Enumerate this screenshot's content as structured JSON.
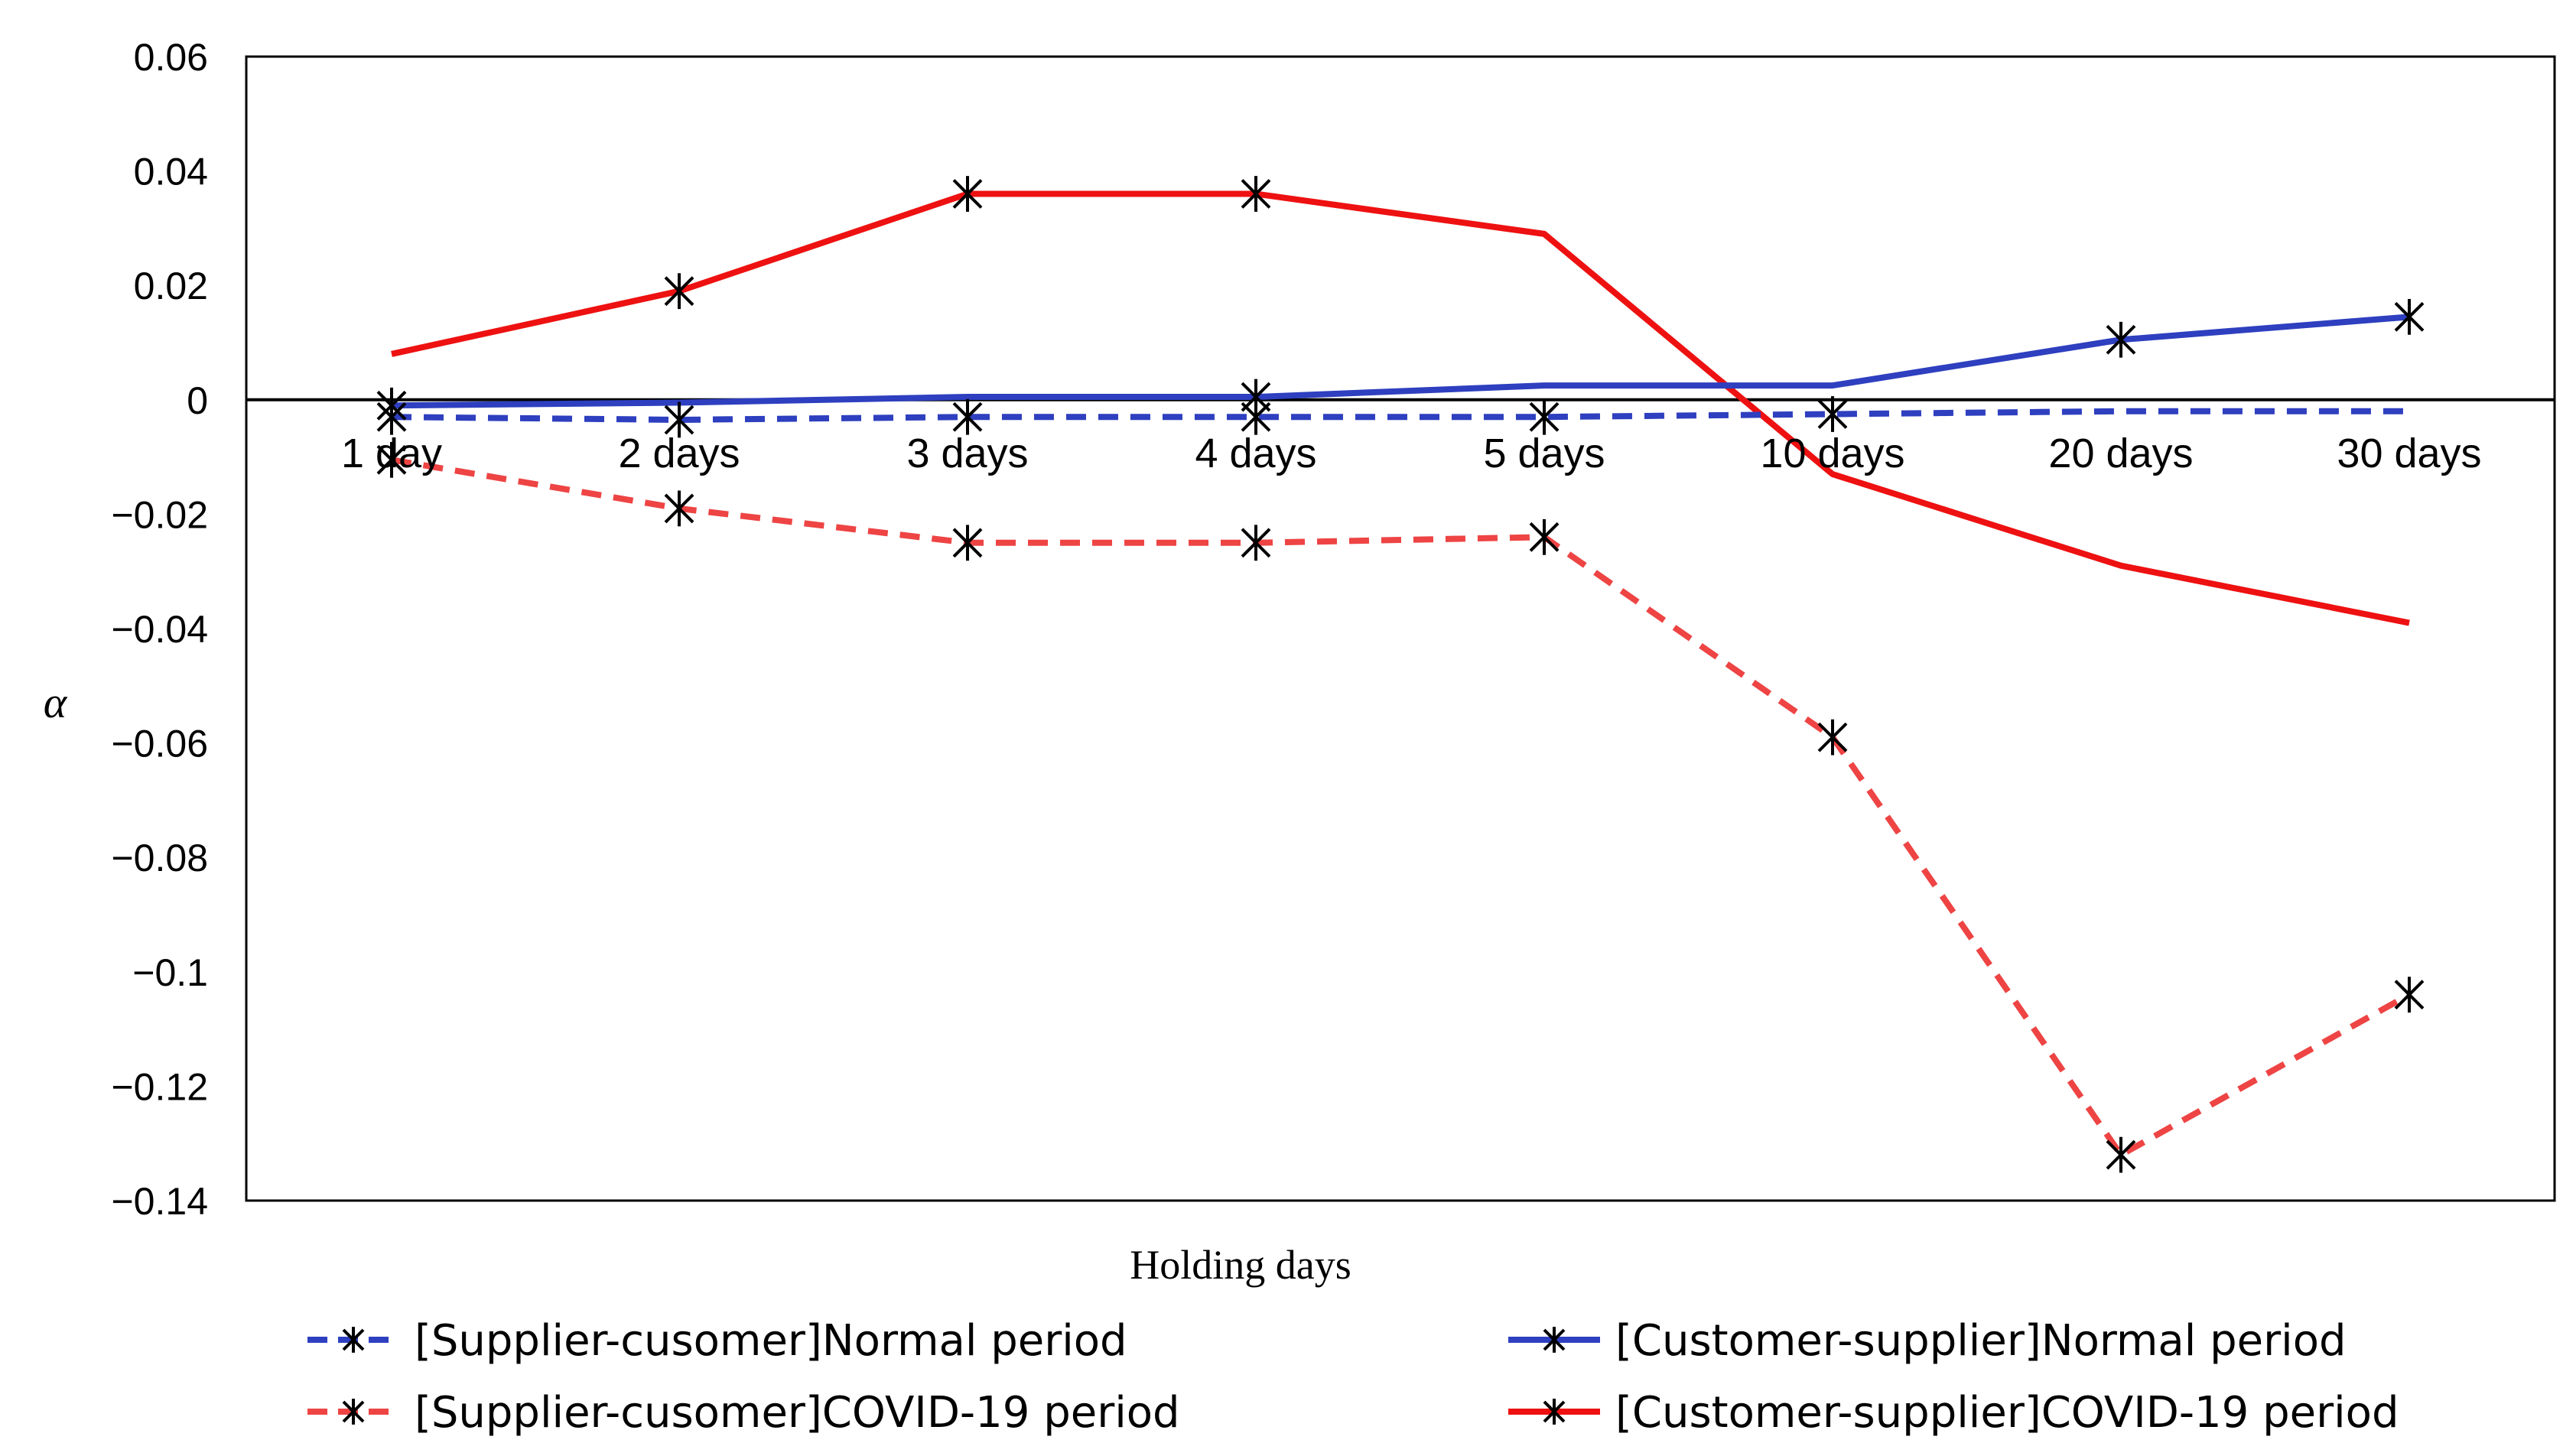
{
  "chart_data": {
    "type": "line",
    "title": "",
    "xlabel": "Holding days",
    "ylabel": "α",
    "ylim": [
      -0.14,
      0.06
    ],
    "yticks": [
      0.06,
      0.04,
      0.02,
      0,
      -0.02,
      -0.04,
      -0.06,
      -0.08,
      -0.1,
      -0.12,
      -0.14
    ],
    "ytick_labels": [
      "0.06",
      "0.04",
      "0.02",
      "0",
      "−0.02",
      "−0.04",
      "−0.06",
      "−0.08",
      "−0.1",
      "−0.12",
      "−0.14"
    ],
    "categories": [
      "1 day",
      "2 days",
      "3 days",
      "4 days",
      "5 days",
      "10 days",
      "20 days",
      "30 days"
    ],
    "legend_position": "bottom",
    "series": [
      {
        "name": "[Supplier-cusomer]Normal period",
        "color": "#2E3FBF",
        "dashed": true,
        "values": [
          -0.003,
          -0.0035,
          -0.003,
          -0.003,
          -0.003,
          -0.0025,
          -0.002,
          -0.002
        ],
        "markers": [
          true,
          true,
          true,
          true,
          true,
          true,
          false,
          false
        ]
      },
      {
        "name": "[Customer-supplier]Normal period",
        "color": "#2E3FBF",
        "dashed": false,
        "values": [
          -0.001,
          -0.0005,
          0.0005,
          0.0005,
          0.0025,
          0.0025,
          0.0105,
          0.0145
        ],
        "markers": [
          true,
          false,
          false,
          true,
          false,
          false,
          true,
          true
        ]
      },
      {
        "name": "[Supplier-cusomer]COVID-19 period",
        "color": "#EE4444",
        "dashed": true,
        "values": [
          -0.0105,
          -0.019,
          -0.025,
          -0.025,
          -0.024,
          -0.059,
          -0.132,
          -0.104
        ],
        "markers": [
          true,
          true,
          true,
          true,
          true,
          true,
          true,
          true
        ]
      },
      {
        "name": "[Customer-supplier]COVID-19 period",
        "color": "#EE1111",
        "dashed": false,
        "values": [
          0.008,
          0.019,
          0.036,
          0.036,
          0.029,
          -0.013,
          -0.029,
          -0.039
        ],
        "markers": [
          false,
          true,
          true,
          true,
          false,
          false,
          false,
          false
        ]
      }
    ]
  }
}
